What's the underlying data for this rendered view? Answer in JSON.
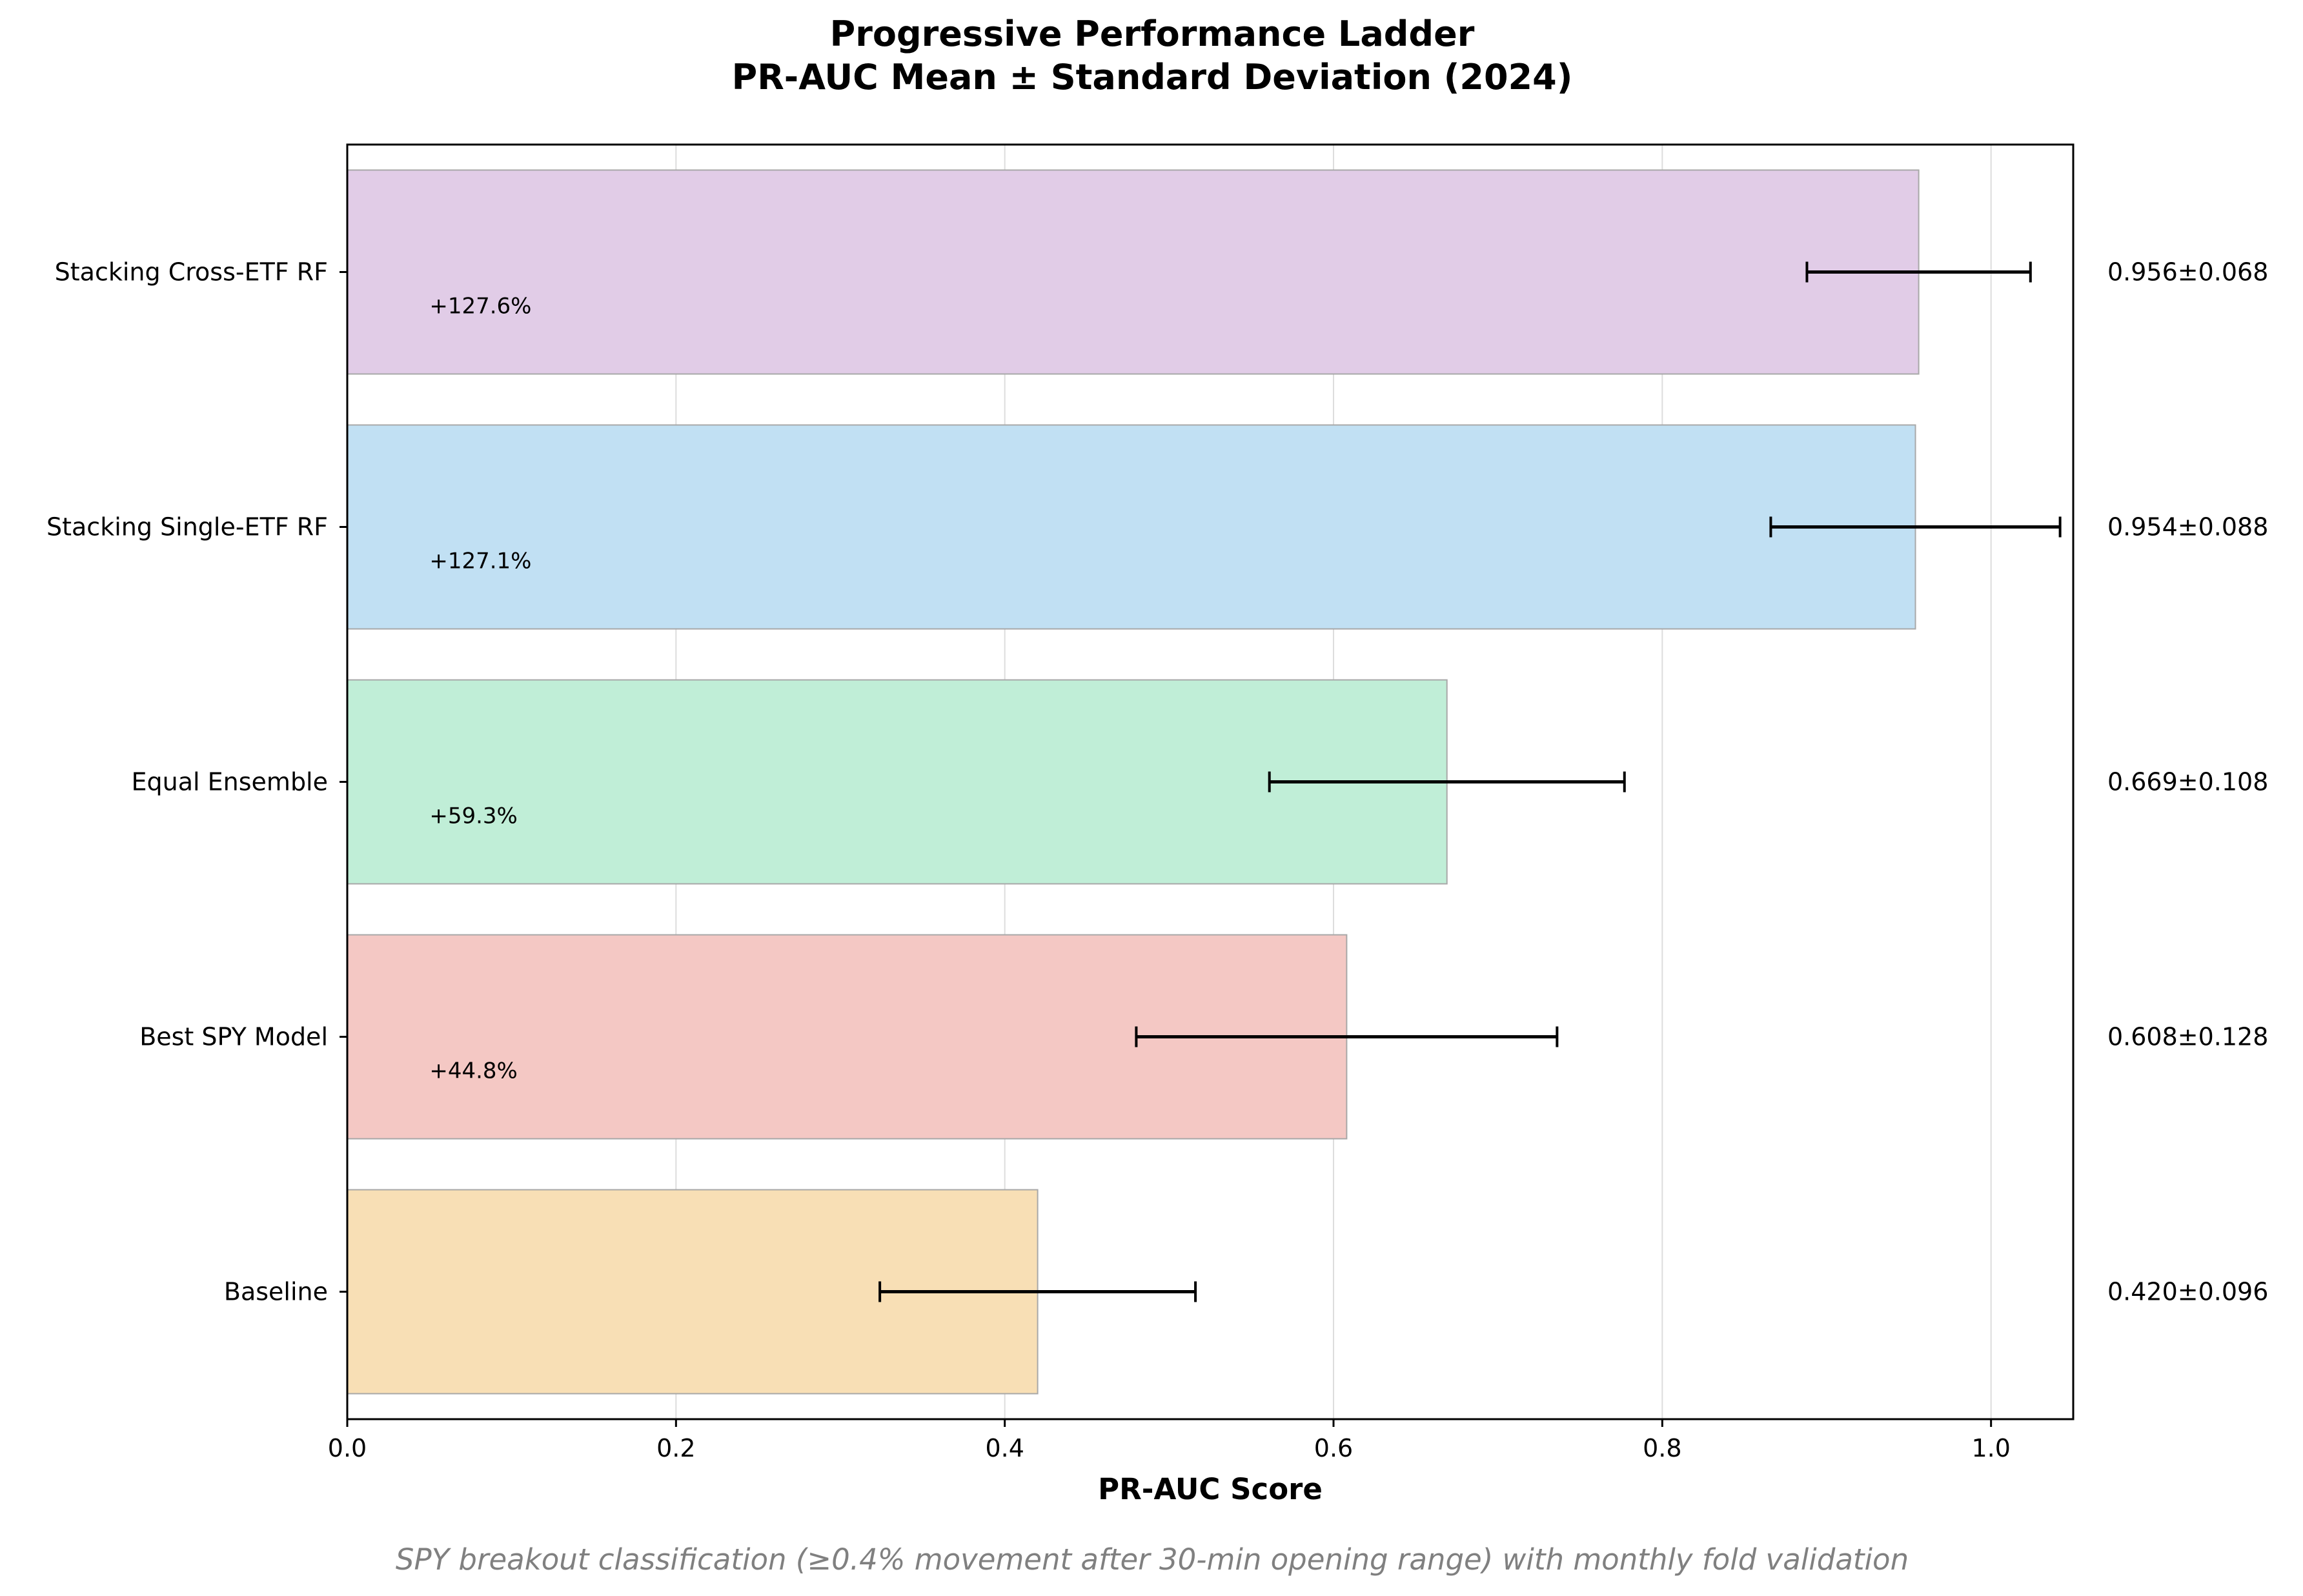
{
  "chart_data": {
    "type": "bar",
    "orientation": "horizontal",
    "title_line1": "Progressive Performance Ladder",
    "title_line2": "PR-AUC Mean ± Standard Deviation (2024)",
    "xlabel": "PR-AUC Score",
    "ylabel": "",
    "xlim": [
      0.0,
      1.05
    ],
    "xticks": [
      "0.0",
      "0.2",
      "0.4",
      "0.6",
      "0.8",
      "1.0"
    ],
    "grid": "x-axis, light gray",
    "footnote": "SPY breakout classification (≥0.4% movement after 30-min opening range) with monthly fold validation",
    "categories": [
      "Baseline",
      "Best SPY Model",
      "Equal Ensemble",
      "Stacking Single-ETF RF",
      "Stacking Cross-ETF RF"
    ],
    "values": [
      0.42,
      0.608,
      0.669,
      0.954,
      0.956
    ],
    "errors": [
      0.096,
      0.128,
      0.108,
      0.088,
      0.068
    ],
    "value_labels": [
      "0.420±0.096",
      "0.608±0.128",
      "0.669±0.108",
      "0.954±0.088",
      "0.956±0.068"
    ],
    "improvement_labels": [
      "",
      "+44.8%",
      "+59.3%",
      "+127.1%",
      "+127.6%"
    ],
    "colors": [
      "#f8dfb5",
      "#f4c8c4",
      "#c0eed7",
      "#c1e0f3",
      "#e1cce7"
    ]
  }
}
